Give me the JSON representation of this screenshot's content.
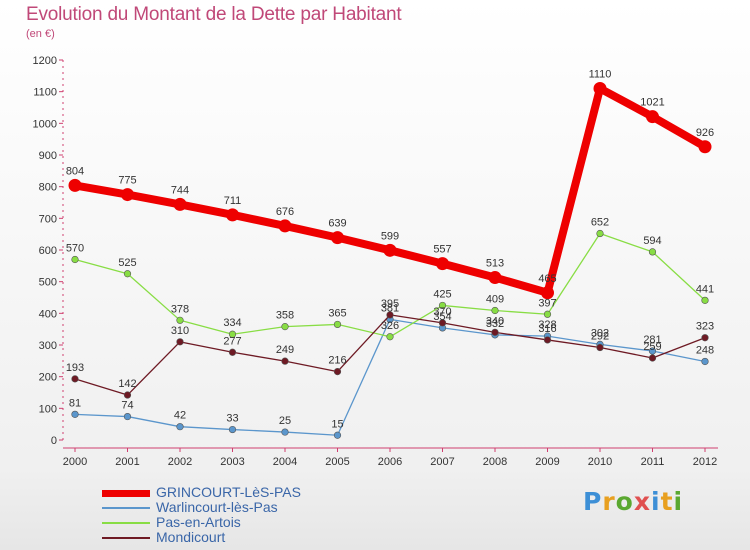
{
  "header": {
    "title": "Evolution du Montant de la Dette par Habitant",
    "subtitle": "(en €)"
  },
  "logo": {
    "letters": [
      "P",
      "r",
      "o",
      "x",
      "i",
      "t",
      "i"
    ],
    "colors": [
      "#3d8fd6",
      "#e8a020",
      "#5aa830",
      "#e05050",
      "#3d8fd6",
      "#e8a020",
      "#5aa830"
    ]
  },
  "chart_data": {
    "type": "line",
    "categories": [
      "2000",
      "2001",
      "2002",
      "2003",
      "2004",
      "2005",
      "2006",
      "2007",
      "2008",
      "2009",
      "2010",
      "2011",
      "2012"
    ],
    "ylim": [
      0,
      1200
    ],
    "yticks": [
      "0",
      "100",
      "200",
      "300",
      "400",
      "500",
      "600",
      "700",
      "800",
      "900",
      "1000",
      "1100",
      "1200"
    ],
    "grid": false,
    "legend_position": "bottom-left",
    "series": [
      {
        "name": "GRINCOURT-LèS-PAS",
        "color": "#ee0000",
        "values": [
          804,
          775,
          744,
          711,
          676,
          639,
          599,
          557,
          513,
          465,
          1110,
          1021,
          926
        ]
      },
      {
        "name": "Warlincourt-lès-Pas",
        "color": "#5b96cc",
        "values": [
          81,
          74,
          42,
          33,
          25,
          15,
          381,
          354,
          332,
          328,
          302,
          281,
          248
        ]
      },
      {
        "name": "Pas-en-Artois",
        "color": "#88dd44",
        "values": [
          570,
          525,
          378,
          334,
          358,
          365,
          326,
          425,
          409,
          397,
          652,
          594,
          441
        ]
      },
      {
        "name": "Mondicourt",
        "color": "#6e1a24",
        "values": [
          193,
          142,
          310,
          277,
          249,
          216,
          395,
          370,
          340,
          316,
          292,
          259,
          323
        ]
      }
    ]
  }
}
